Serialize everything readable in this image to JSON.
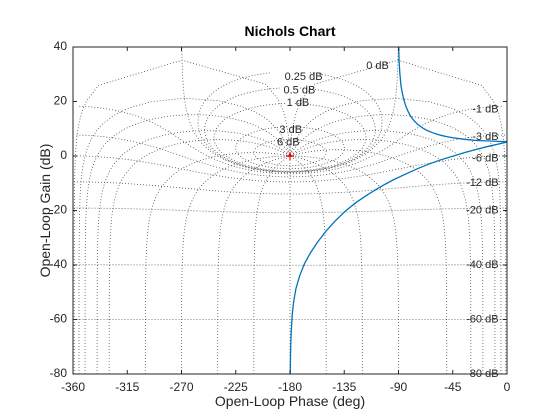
{
  "chart_data": {
    "type": "line",
    "title": "Nichols Chart",
    "xlabel": "Open-Loop Phase (deg)",
    "ylabel": "Open-Loop Gain (dB)",
    "xlim": [
      -360,
      0
    ],
    "ylim": [
      -80,
      40
    ],
    "xticks": [
      -360,
      -315,
      -270,
      -225,
      -180,
      -135,
      -90,
      -45,
      0
    ],
    "yticks": [
      -80,
      -60,
      -40,
      -20,
      0,
      20,
      40
    ],
    "xtick_labels": [
      "-360",
      "-315",
      "-270",
      "-225",
      "-180",
      "-135",
      "-90",
      "-45",
      "0"
    ],
    "ytick_labels": [
      "-80",
      "-60",
      "-40",
      "-20",
      "0",
      "20",
      "40"
    ],
    "grid": true,
    "grid_style": "dotted",
    "marker": {
      "x": -180,
      "y": 0,
      "symbol": "+",
      "color": "#ff0000"
    },
    "closed_loop_magnitude_contours_db": [
      6,
      3,
      1,
      0.5,
      0.25,
      0,
      -1,
      -3,
      -6,
      -12,
      -20,
      -40,
      -60,
      -80
    ],
    "closed_loop_phase_contours_deg": [
      -1,
      -5,
      -10,
      -20,
      -30,
      -50,
      -90,
      -120,
      -150,
      -180,
      -210,
      -240,
      -270,
      -300,
      -330,
      -340,
      -350,
      -355,
      -359
    ],
    "grid_labels": [
      {
        "text": "0 dB"
      },
      {
        "text": "0.25 dB"
      },
      {
        "text": "0.5 dB"
      },
      {
        "text": "1 dB"
      },
      {
        "text": "3 dB"
      },
      {
        "text": "6 dB"
      },
      {
        "text": "-1 dB"
      },
      {
        "text": "-3 dB"
      },
      {
        "text": "-6 dB"
      },
      {
        "text": "-12 dB"
      },
      {
        "text": "-20 dB"
      },
      {
        "text": "-40 dB"
      },
      {
        "text": "-60 dB"
      },
      {
        "text": "-80 dB"
      }
    ],
    "series": [
      {
        "color": "#0072bd",
        "branches": [
          {
            "x": [
              -89.8,
              -89.5,
              -89,
              -88.5,
              -88,
              -87,
              -86,
              -85,
              -84,
              -82,
              -80,
              -77,
              -74,
              -70,
              -66,
              -62,
              -58,
              -54,
              -50,
              -45,
              -40,
              -35,
              -30,
              -25,
              -20,
              -15,
              -10,
              -5,
              0
            ],
            "y": [
              40,
              35,
              31,
              28.5,
              26,
              23.5,
              21.5,
              19.8,
              18.4,
              16.3,
              14.6,
              12.9,
              11.6,
              10.3,
              9.3,
              8.6,
              8.0,
              7.5,
              7.1,
              6.7,
              6.4,
              6.1,
              5.9,
              5.7,
              5.6,
              5.5,
              5.4,
              5.3,
              5.3
            ]
          },
          {
            "x": [
              -179.8,
              -179.5,
              -179,
              -178,
              -177,
              -175,
              -172,
              -168,
              -163,
              -157,
              -150,
              -142,
              -134,
              -125,
              -115,
              -105,
              -95,
              -85,
              -75,
              -65,
              -55,
              -45,
              -35,
              -25,
              -15,
              -5,
              0
            ],
            "y": [
              -80,
              -71,
              -64.5,
              -57.5,
              -53.5,
              -48.5,
              -44,
              -39.5,
              -35.5,
              -31.5,
              -27.5,
              -23.6,
              -20.2,
              -17,
              -14,
              -11.3,
              -8.9,
              -6.8,
              -4.8,
              -3,
              -1.4,
              -0.1,
              1.3,
              2.5,
              3.6,
              4.6,
              5.1
            ]
          }
        ]
      }
    ]
  }
}
